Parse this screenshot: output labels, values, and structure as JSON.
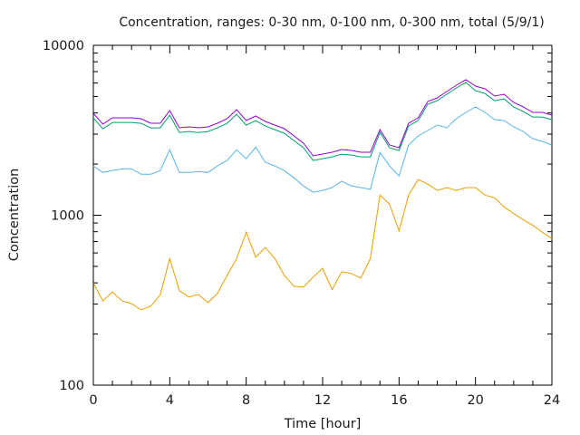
{
  "chart_data": {
    "type": "line",
    "title": "Concentration, ranges: 0-30 nm, 0-100 nm, 0-300 nm, total (5/9/1)",
    "xlabel": "Time [hour]",
    "ylabel": "Concentration",
    "xlim": [
      0,
      24
    ],
    "ylim": [
      100,
      10000
    ],
    "yscale": "log",
    "grid": false,
    "legend": "none",
    "x_ticks": [
      "0",
      "4",
      "8",
      "12",
      "16",
      "20",
      "24"
    ],
    "x_tick_values": [
      0,
      4,
      8,
      12,
      16,
      20,
      24
    ],
    "y_ticks": [
      "100",
      "1000",
      "10000"
    ],
    "y_tick_values": [
      100,
      1000,
      10000
    ],
    "x": [
      0,
      0.5,
      1,
      1.5,
      2,
      2.5,
      3,
      3.5,
      4,
      4.5,
      5,
      5.5,
      6,
      6.5,
      7,
      7.5,
      8,
      8.5,
      9,
      9.5,
      10,
      10.5,
      11,
      11.5,
      12,
      12.5,
      13,
      13.5,
      14,
      14.5,
      15,
      15.5,
      16,
      16.5,
      17,
      17.5,
      18,
      18.5,
      19,
      19.5,
      20,
      20.5,
      21,
      21.5,
      22,
      22.5,
      23,
      23.5,
      24
    ],
    "series": [
      {
        "name": "total",
        "color": "#9400d3",
        "values": [
          3981,
          3436,
          3745,
          3745,
          3745,
          3698,
          3477,
          3477,
          4130,
          3270,
          3311,
          3270,
          3311,
          3477,
          3698,
          4182,
          3609,
          3837,
          3565,
          3394,
          3230,
          2929,
          2655,
          2236,
          2291,
          2348,
          2436,
          2406,
          2348,
          2348,
          3192,
          2591,
          2495,
          3477,
          3745,
          4670,
          4906,
          5346,
          5824,
          6271,
          5754,
          5546,
          5025,
          5152,
          4613,
          4338,
          4030,
          4030,
          3884
        ]
      },
      {
        "name": "0-300 nm",
        "color": "#009e73",
        "values": [
          3738,
          3226,
          3516,
          3516,
          3516,
          3473,
          3265,
          3265,
          3878,
          3070,
          3109,
          3070,
          3109,
          3265,
          3473,
          3927,
          3389,
          3603,
          3347,
          3187,
          3033,
          2750,
          2493,
          2100,
          2151,
          2205,
          2287,
          2259,
          2205,
          2205,
          3076,
          2497,
          2404,
          3351,
          3609,
          4500,
          4728,
          5152,
          5613,
          6043,
          5403,
          5207,
          4718,
          4838,
          4331,
          4073,
          3784,
          3784,
          3647
        ]
      },
      {
        "name": "0-100 nm",
        "color": "#56b4e9",
        "values": [
          1950,
          1785,
          1830,
          1877,
          1877,
          1742,
          1742,
          1830,
          2427,
          1785,
          1785,
          1807,
          1785,
          1950,
          2099,
          2427,
          2148,
          2516,
          2052,
          1950,
          1830,
          1661,
          1487,
          1365,
          1400,
          1455,
          1585,
          1488,
          1455,
          1420,
          2343,
          1950,
          1701,
          2591,
          2929,
          3154,
          3394,
          3270,
          3698,
          4030,
          4338,
          4030,
          3652,
          3609,
          3311,
          3111,
          2822,
          2720,
          2591
        ]
      },
      {
        "name": "0-30 nm",
        "color": "#e69f00",
        "values": [
          400,
          313,
          354,
          313,
          302,
          277,
          291,
          340,
          557,
          360,
          330,
          342,
          306,
          347,
          442,
          557,
          794,
          566,
          646,
          557,
          442,
          382,
          378,
          432,
          487,
          365,
          465,
          454,
          427,
          557,
          1313,
          1164,
          810,
          1313,
          1620,
          1526,
          1400,
          1455,
          1400,
          1455,
          1455,
          1313,
          1266,
          1119,
          1023,
          939,
          873,
          794,
          730
        ]
      }
    ]
  }
}
